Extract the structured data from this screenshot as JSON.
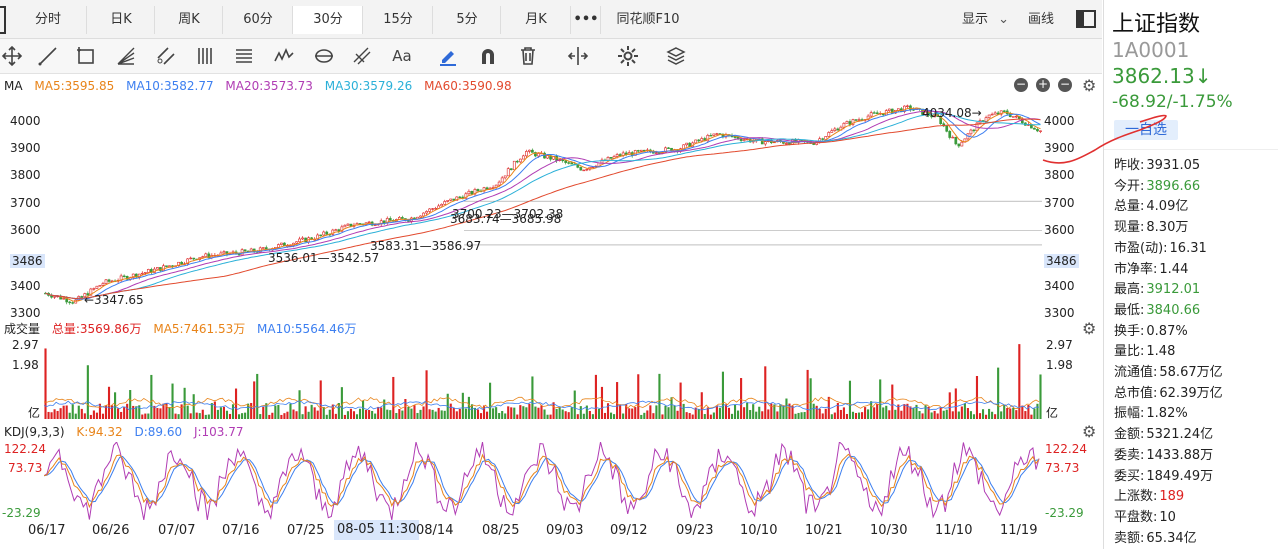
{
  "tabs": [
    "分时",
    "日K",
    "周K",
    "60分",
    "30分",
    "15分",
    "5分",
    "月K",
    "•••",
    "同花顺F10"
  ],
  "active_tab": "30分",
  "display_label": "显示",
  "draw_label": "画线",
  "ma_header": {
    "name": "MA",
    "items": [
      {
        "label": "MA5:3595.85",
        "color": "#e8841a"
      },
      {
        "label": "MA10:3582.77",
        "color": "#3d7ff0"
      },
      {
        "label": "MA20:3573.73",
        "color": "#b03cb4"
      },
      {
        "label": "MA30:3579.26",
        "color": "#2bb0d8"
      },
      {
        "label": "MA60:3590.98",
        "color": "#e24a2e"
      }
    ]
  },
  "price_axis": [
    "4000",
    "3900",
    "3800",
    "3700",
    "3600",
    "3486",
    "3400",
    "3300"
  ],
  "price_highlight": "3486",
  "annotations": {
    "high": "4034.08→",
    "low": "←3347.65",
    "gap1": "3536.01—3542.57",
    "gap2": "3583.31—3586.97",
    "gap3": "3700.23—3702.38",
    "gap4": "3683.74—3685.98"
  },
  "volume_header": {
    "name": "成交量",
    "items": [
      {
        "label": "总量:3569.86万",
        "color": "#d22"
      },
      {
        "label": "MA5:7461.53万",
        "color": "#e8841a"
      },
      {
        "label": "MA10:5564.46万",
        "color": "#3d7ff0"
      }
    ]
  },
  "volume_axis": [
    "2.97",
    "1.98",
    "亿"
  ],
  "kdj_header": {
    "name": "KDJ(9,3,3)",
    "items": [
      {
        "label": "K:94.32",
        "color": "#e8841a"
      },
      {
        "label": "D:89.60",
        "color": "#3d7ff0"
      },
      {
        "label": "J:103.77",
        "color": "#b03cb4"
      }
    ]
  },
  "kdj_axis": {
    "top": "122.24",
    "mid": "73.73",
    "bottom": "-23.29"
  },
  "x_labels": [
    "06/17",
    "06/26",
    "07/07",
    "07/16",
    "07/25",
    "08-05 11:30",
    "08/14",
    "08/25",
    "09/03",
    "09/12",
    "09/23",
    "10/10",
    "10/21",
    "10/30",
    "11/10",
    "11/19"
  ],
  "x_highlight": "08-05 11:30",
  "stock": {
    "name": "上证指数",
    "code": "1A0001",
    "price": "3862.13↓",
    "change": "-68.92/-1.75%",
    "watch_button": "一自选"
  },
  "stats": [
    {
      "label": "昨收:",
      "value": "3931.05",
      "color": "#222"
    },
    {
      "label": "今开:",
      "value": "3896.66",
      "color": "#3a9a3a"
    },
    {
      "label": "总量:",
      "value": "4.09亿",
      "color": "#222"
    },
    {
      "label": "现量:",
      "value": "8.30万",
      "color": "#222"
    },
    {
      "label": "市盈(动):",
      "value": "16.31",
      "color": "#222"
    },
    {
      "label": "市净率:",
      "value": "1.44",
      "color": "#222"
    },
    {
      "label": "最高:",
      "value": "3912.01",
      "color": "#3a9a3a"
    },
    {
      "label": "最低:",
      "value": "3840.66",
      "color": "#3a9a3a"
    },
    {
      "label": "换手:",
      "value": "0.87%",
      "color": "#222"
    },
    {
      "label": "量比:",
      "value": "1.48",
      "color": "#222"
    },
    {
      "label": "流通值:",
      "value": "58.67万亿",
      "color": "#222"
    },
    {
      "label": "总市值:",
      "value": "62.39万亿",
      "color": "#222"
    },
    {
      "label": "振幅:",
      "value": "1.82%",
      "color": "#222"
    },
    {
      "label": "金额:",
      "value": "5321.24亿",
      "color": "#222"
    },
    {
      "label": "委卖:",
      "value": "1433.88万",
      "color": "#222"
    },
    {
      "label": "委买:",
      "value": "1849.49万",
      "color": "#222"
    },
    {
      "label": "上涨数:",
      "value": "189",
      "color": "#d22"
    },
    {
      "label": "平盘数:",
      "value": "10",
      "color": "#222"
    },
    {
      "label": "卖额:",
      "value": "65.34亿",
      "color": "#222"
    }
  ],
  "colors": {
    "up": "#d22",
    "down": "#3a9a3a",
    "accent": "#3d7ff0"
  }
}
